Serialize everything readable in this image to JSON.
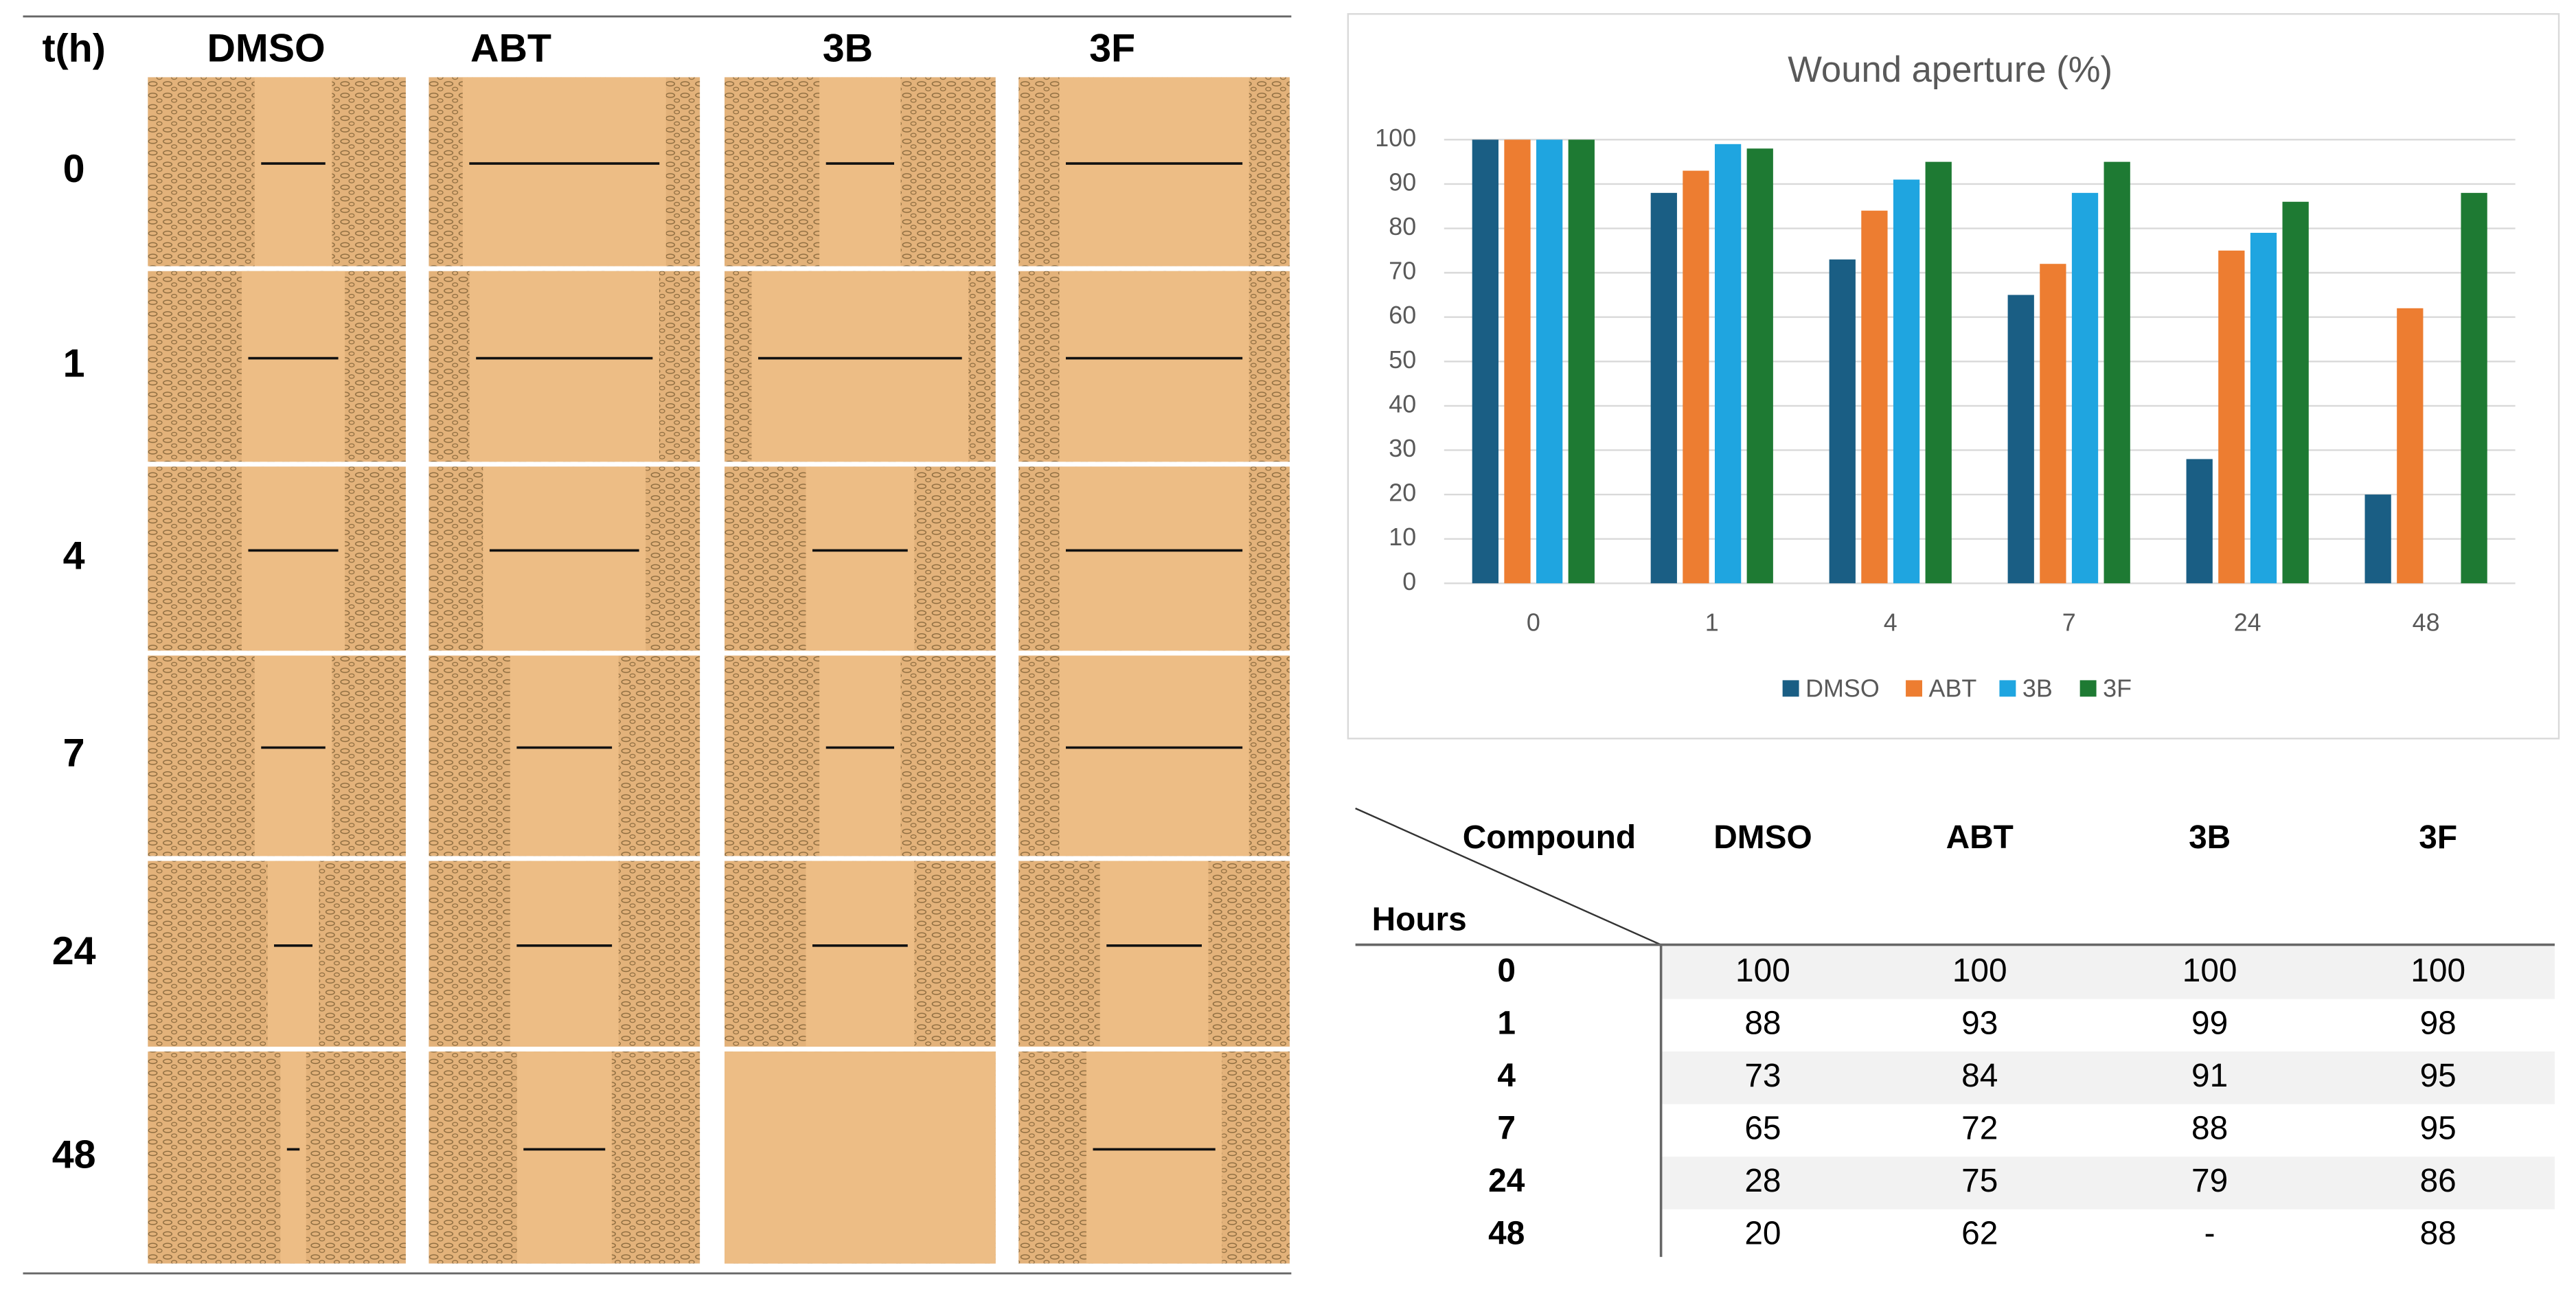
{
  "micrographs": {
    "corner": "t(h)",
    "columns": [
      "DMSO",
      "ABT",
      "3B",
      "3F"
    ],
    "rows": [
      "0",
      "1",
      "4",
      "7",
      "24",
      "48"
    ]
  },
  "chart_data": {
    "type": "bar",
    "title": "Wound aperture (%)",
    "categories": [
      "0",
      "1",
      "4",
      "7",
      "24",
      "48"
    ],
    "series": [
      {
        "name": "DMSO",
        "color": "#1a5e84",
        "values": [
          100,
          88,
          73,
          65,
          28,
          20
        ]
      },
      {
        "name": "ABT",
        "color": "#ed7d31",
        "values": [
          100,
          93,
          84,
          72,
          75,
          62
        ]
      },
      {
        "name": "3B",
        "color": "#1fa5e0",
        "values": [
          100,
          99,
          91,
          88,
          79,
          null
        ]
      },
      {
        "name": "3F",
        "color": "#1e7a33",
        "values": [
          100,
          98,
          95,
          95,
          86,
          88
        ]
      }
    ],
    "ylim": [
      0,
      100
    ],
    "yticks": [
      0,
      10,
      20,
      30,
      40,
      50,
      60,
      70,
      80,
      90,
      100
    ],
    "grid": true,
    "legend": "bottom"
  },
  "table": {
    "corner_column": "Compound",
    "corner_row": "Hours",
    "columns": [
      "DMSO",
      "ABT",
      "3B",
      "3F"
    ],
    "rows": [
      {
        "hours": "0",
        "values": [
          100,
          100,
          100,
          100
        ]
      },
      {
        "hours": "1",
        "values": [
          88,
          93,
          99,
          98
        ]
      },
      {
        "hours": "4",
        "values": [
          73,
          84,
          91,
          95
        ]
      },
      {
        "hours": "7",
        "values": [
          65,
          72,
          88,
          95
        ]
      },
      {
        "hours": "24",
        "values": [
          28,
          75,
          79,
          86
        ]
      },
      {
        "hours": "48",
        "values": [
          20,
          62,
          "-",
          88
        ]
      }
    ]
  }
}
